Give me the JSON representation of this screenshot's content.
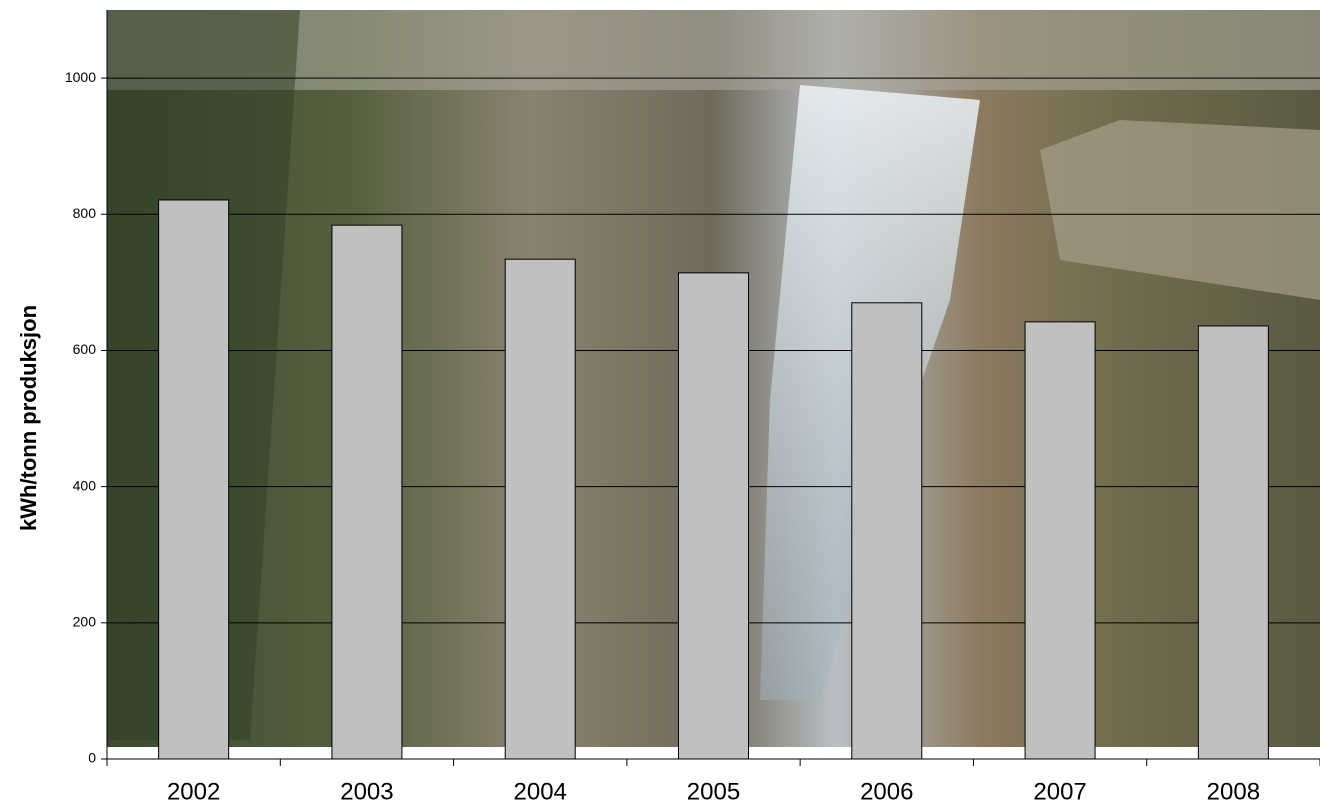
{
  "chart_data": {
    "type": "bar",
    "y_label": "kWh/tonn produksjon",
    "categories": [
      "2002",
      "2003",
      "2004",
      "2005",
      "2006",
      "2007",
      "2008"
    ],
    "values": [
      821,
      784,
      734,
      714,
      670,
      642,
      636
    ],
    "color": "#c0c0c0",
    "ylim": [
      0,
      1100
    ],
    "yticks": [
      0,
      200,
      400,
      600,
      800,
      1000
    ],
    "grid": true
  }
}
